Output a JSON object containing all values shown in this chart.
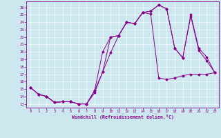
{
  "background_color": "#cce8ee",
  "line_color": "#880088",
  "grid_color": "#ffffff",
  "xlabel": "Windchill (Refroidissement éolien,°C)",
  "xlim_min": -0.5,
  "xlim_max": 23.5,
  "ylim_min": 12.5,
  "ylim_max": 26.8,
  "xticks": [
    0,
    1,
    2,
    3,
    4,
    5,
    6,
    7,
    8,
    9,
    10,
    11,
    12,
    13,
    14,
    15,
    16,
    17,
    18,
    19,
    20,
    21,
    22,
    23
  ],
  "yticks": [
    13,
    14,
    15,
    16,
    17,
    18,
    19,
    20,
    21,
    22,
    23,
    24,
    25,
    26
  ],
  "line1": {
    "x": [
      0,
      1,
      2,
      3,
      4,
      5,
      6,
      7,
      8,
      9,
      10,
      11,
      12,
      13,
      14,
      15,
      16,
      17,
      18,
      19,
      20,
      21,
      22,
      23
    ],
    "y": [
      15.2,
      14.3,
      14.0,
      13.2,
      13.3,
      13.3,
      13.0,
      13.0,
      14.5,
      17.3,
      19.9,
      22.2,
      24.0,
      23.8,
      25.3,
      25.1,
      16.5,
      16.3,
      16.5,
      16.8,
      17.0,
      17.0,
      17.0,
      17.2
    ]
  },
  "line2": {
    "x": [
      0,
      1,
      2,
      3,
      4,
      5,
      6,
      7,
      8,
      9,
      10,
      11,
      12,
      13,
      14,
      15,
      16,
      17,
      18,
      19,
      20,
      21,
      22,
      23
    ],
    "y": [
      15.2,
      14.3,
      14.0,
      13.2,
      13.3,
      13.3,
      13.0,
      13.0,
      14.8,
      20.0,
      22.0,
      22.2,
      24.0,
      23.8,
      25.3,
      25.5,
      26.3,
      25.8,
      20.5,
      19.2,
      25.0,
      20.5,
      19.3,
      17.2
    ]
  },
  "line3": {
    "x": [
      0,
      1,
      2,
      3,
      4,
      5,
      6,
      7,
      8,
      9,
      10,
      11,
      12,
      13,
      14,
      15,
      16,
      17,
      18,
      19,
      20,
      21,
      22,
      23
    ],
    "y": [
      15.2,
      14.3,
      14.0,
      13.2,
      13.3,
      13.3,
      13.0,
      13.0,
      14.8,
      17.3,
      22.0,
      22.2,
      24.0,
      23.8,
      25.3,
      25.5,
      26.3,
      25.8,
      20.5,
      19.2,
      24.8,
      20.2,
      18.8,
      17.2
    ]
  },
  "tick_fontsize": 4.0,
  "xlabel_fontsize": 4.8
}
